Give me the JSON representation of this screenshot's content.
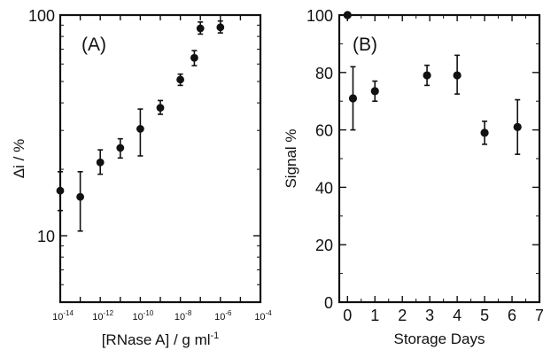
{
  "chart_data": [
    {
      "type": "scatter",
      "panel_label": "(A)",
      "xlabel": "[RNase A] / g ml",
      "xlabel_sup": "-1",
      "ylabel": "Δi / %",
      "xscale": "log",
      "yscale": "log",
      "xlim": [
        1e-14,
        0.0001
      ],
      "ylim": [
        5,
        100
      ],
      "x_tick_labels": [
        {
          "base": "10",
          "exp": "-14"
        },
        {
          "base": "10",
          "exp": "-12"
        },
        {
          "base": "10",
          "exp": "-10"
        },
        {
          "base": "10",
          "exp": "-8"
        },
        {
          "base": "10",
          "exp": "-6"
        },
        {
          "base": "10",
          "exp": "-4"
        }
      ],
      "y_tick_labels": [
        "10",
        "100"
      ],
      "error_bars": true,
      "points": [
        {
          "x": 1e-14,
          "y": 16,
          "y_low": 13,
          "y_high": 19.5
        },
        {
          "x": 1e-13,
          "y": 15,
          "y_low": 10.5,
          "y_high": 19.5
        },
        {
          "x": 1e-12,
          "y": 21.5,
          "y_low": 19,
          "y_high": 24.5
        },
        {
          "x": 1e-11,
          "y": 25,
          "y_low": 22.5,
          "y_high": 27.5
        },
        {
          "x": 1e-10,
          "y": 30.5,
          "y_low": 23,
          "y_high": 37.5
        },
        {
          "x": 1e-09,
          "y": 38,
          "y_low": 35.5,
          "y_high": 41
        },
        {
          "x": 1e-08,
          "y": 51,
          "y_low": 48,
          "y_high": 54
        },
        {
          "x": 5e-08,
          "y": 64,
          "y_low": 59,
          "y_high": 69
        },
        {
          "x": 1e-07,
          "y": 87,
          "y_low": 82,
          "y_high": 93
        },
        {
          "x": 1e-06,
          "y": 88,
          "y_low": 83,
          "y_high": 94
        }
      ]
    },
    {
      "type": "scatter",
      "panel_label": "(B)",
      "xlabel": "Storage Days",
      "ylabel": "Signal %",
      "xlim": [
        -0.3,
        7
      ],
      "ylim": [
        0,
        100
      ],
      "x_ticks": [
        0,
        1,
        2,
        3,
        4,
        5,
        6,
        7
      ],
      "y_ticks": [
        0,
        20,
        40,
        60,
        80,
        100
      ],
      "error_bars": true,
      "points": [
        {
          "x": 0,
          "y": 100,
          "y_low": 100,
          "y_high": 100
        },
        {
          "x": 0.2,
          "y": 71,
          "y_low": 60,
          "y_high": 82
        },
        {
          "x": 1,
          "y": 73.5,
          "y_low": 70,
          "y_high": 77
        },
        {
          "x": 2.9,
          "y": 79,
          "y_low": 75.5,
          "y_high": 82.5
        },
        {
          "x": 4,
          "y": 79,
          "y_low": 72.5,
          "y_high": 86
        },
        {
          "x": 5,
          "y": 59,
          "y_low": 55,
          "y_high": 63
        },
        {
          "x": 6.2,
          "y": 61,
          "y_low": 51.5,
          "y_high": 70.5
        }
      ]
    }
  ]
}
